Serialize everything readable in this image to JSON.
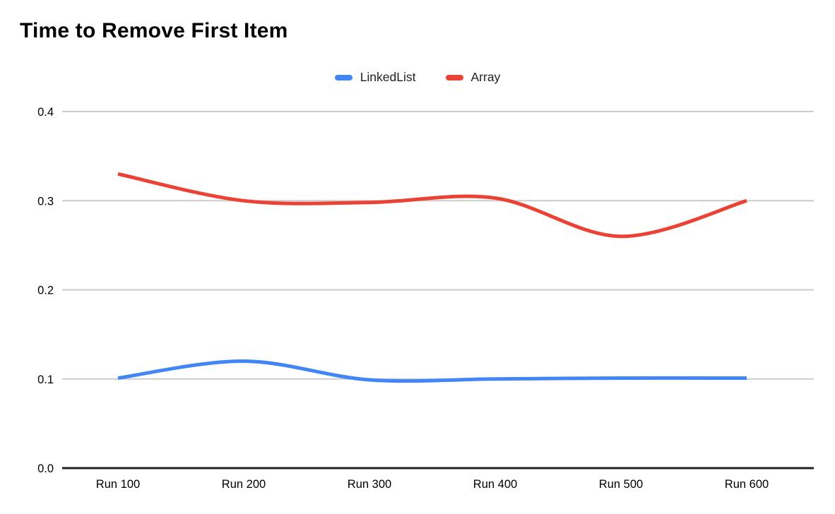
{
  "chart_data": {
    "type": "line",
    "title": "Time to Remove First Item",
    "categories": [
      "Run 100",
      "Run 200",
      "Run 300",
      "Run 400",
      "Run 500",
      "Run 600"
    ],
    "series": [
      {
        "name": "LinkedList",
        "color": "#4285F4",
        "values": [
          0.101,
          0.12,
          0.099,
          0.1,
          0.101,
          0.101
        ]
      },
      {
        "name": "Array",
        "color": "#EA4335",
        "values": [
          0.33,
          0.3,
          0.298,
          0.303,
          0.26,
          0.3
        ]
      }
    ],
    "xlabel": "",
    "ylabel": "",
    "ylim": [
      0,
      0.4
    ],
    "y_ticks": [
      {
        "value": 0.0,
        "label": "0.0"
      },
      {
        "value": 0.1,
        "label": "0.1"
      },
      {
        "value": 0.2,
        "label": "0.2"
      },
      {
        "value": 0.3,
        "label": "0.3"
      },
      {
        "value": 0.4,
        "label": "0.4"
      }
    ],
    "grid": true,
    "smooth": true,
    "legend_position": "top-center",
    "colors": {
      "axis_line": "#212121",
      "gridline": "#cccccc",
      "tick_label": "#000000"
    }
  }
}
